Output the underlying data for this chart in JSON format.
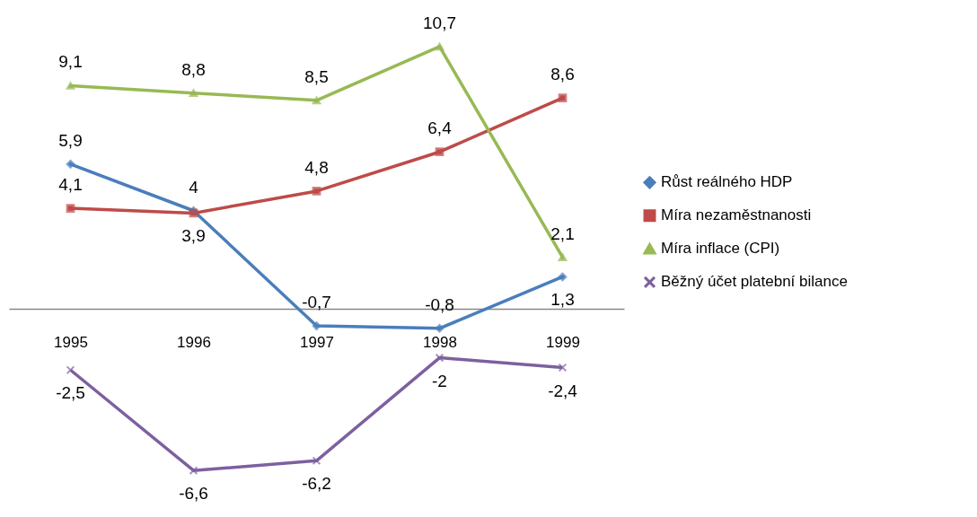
{
  "chart_data": {
    "type": "line",
    "categories": [
      "1995",
      "1996",
      "1997",
      "1998",
      "1999"
    ],
    "series": [
      {
        "name": "Růst reálného HDP",
        "color": "#4a7ebb",
        "marker": "diamond",
        "values": [
          5.9,
          4,
          -0.7,
          -0.8,
          1.3
        ],
        "value_labels": [
          "5,9",
          "4",
          "-0,7",
          "-0,8",
          "1,3"
        ]
      },
      {
        "name": "Míra nezaměstnanosti",
        "color": "#be4b48",
        "marker": "square",
        "values": [
          4.1,
          3.9,
          4.8,
          6.4,
          8.6
        ],
        "value_labels": [
          "4,1",
          "3,9",
          "4,8",
          "6,4",
          "8,6"
        ]
      },
      {
        "name": "Míra inflace (CPI)",
        "color": "#98b954",
        "marker": "triangle",
        "values": [
          9.1,
          8.8,
          8.5,
          10.7,
          2.1
        ],
        "value_labels": [
          "9,1",
          "8,8",
          "8,5",
          "10,7",
          "2,1"
        ]
      },
      {
        "name": "Běžný účet platební bilance",
        "color": "#7d60a0",
        "marker": "cross",
        "values": [
          -2.5,
          -6.6,
          -6.2,
          -2,
          -2.4
        ],
        "value_labels": [
          "-2,5",
          "-6,6",
          "-6,2",
          "-2",
          "-2,4"
        ]
      }
    ],
    "tick_labels": "x",
    "legend": "right",
    "grid": false,
    "line_style": "solid"
  }
}
